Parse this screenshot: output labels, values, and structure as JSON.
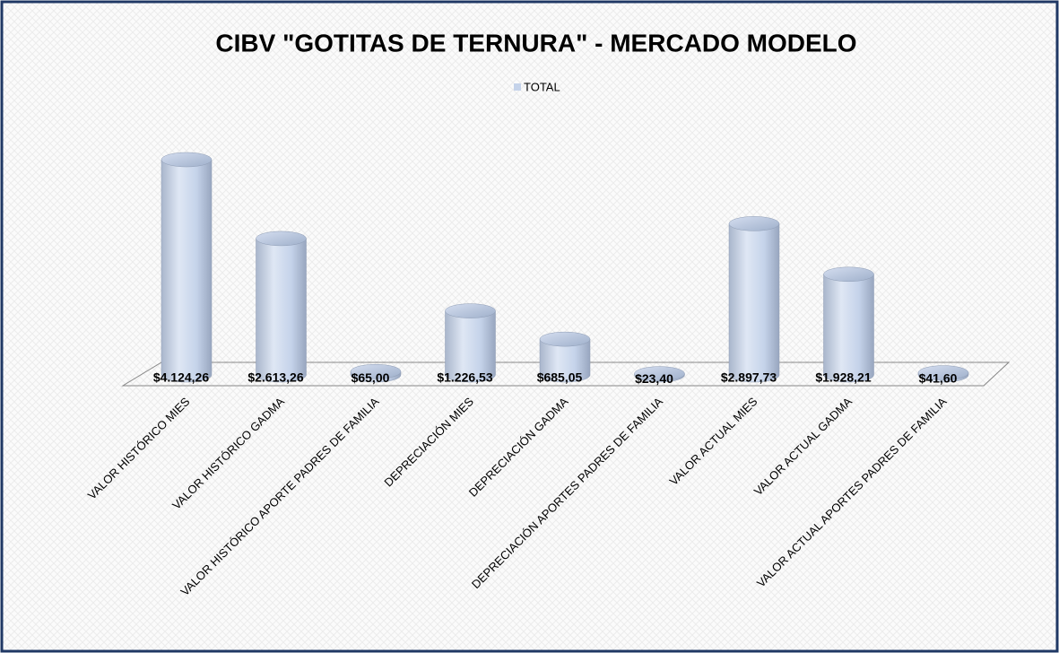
{
  "chart_data": {
    "type": "bar3d",
    "title": "CIBV \"GOTITAS DE TERNURA\" - MERCADO MODELO",
    "categories": [
      "VALOR HISTÓRICO MIES",
      "VALOR HISTÓRICO GADMA",
      "VALOR HISTÓRICO APORTE PADRES DE FAMILIA",
      "DEPRECIACIÓN MIES",
      "DEPRECIACIÓN GADMA",
      "DEPRECIACIÓN APORTES PADRES DE FAMILIA",
      "VALOR ACTUAL MIES",
      "VALOR ACTUAL GADMA",
      "VALOR ACTUAL APORTES PADRES DE FAMILIA"
    ],
    "series": [
      {
        "name": "TOTAL",
        "color": "#c5d3ea",
        "values": [
          4124.26,
          2613.26,
          65.0,
          1226.53,
          685.05,
          23.4,
          2897.73,
          1928.21,
          41.6
        ],
        "value_labels": [
          "$4.124,26",
          "$2.613,26",
          "$65,00",
          "$1.226,53",
          "$685,05",
          "$23,40",
          "$2.897,73",
          "$1.928,21",
          "$41,60"
        ]
      }
    ],
    "legend": "top"
  }
}
